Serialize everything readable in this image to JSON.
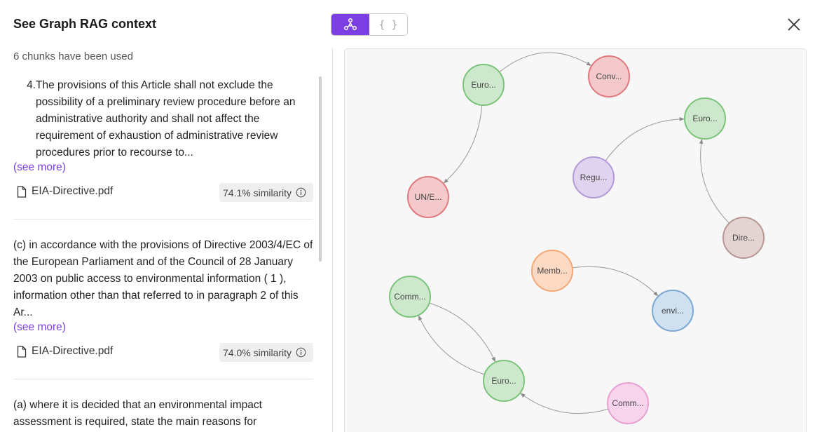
{
  "header": {
    "title": "See Graph RAG context",
    "chunks_count": "6 chunks have been used",
    "toggle_json_label": "{ }"
  },
  "chunks": [
    {
      "list_number": "4.",
      "text": "The provisions of this Article shall not exclude the possibility of a preliminary review procedure before an administrative authority and shall not affect the requirement of exhaustion of administrative review procedures prior to recourse to...",
      "see_more": "(see more)",
      "file": "EIA-Directive.pdf",
      "similarity": "74.1% similarity"
    },
    {
      "text": "(c) in accordance with the provisions of Directive 2003/4/EC of the European Parliament and of the Council of 28 January 2003 on public access to environmental information ( 1 ), information other than that referred to in paragraph 2 of this Ar...",
      "see_more": "(see more)",
      "file": "EIA-Directive.pdf",
      "similarity": "74.0% similarity"
    },
    {
      "text": "(a) where it is decided that an environmental impact assessment is required, state the main reasons for"
    }
  ],
  "graph": {
    "nodes": [
      {
        "id": "n1",
        "label": "Euro...",
        "color": "#cde8cd",
        "stroke": "#7cc47c"
      },
      {
        "id": "n2",
        "label": "Conv...",
        "color": "#f3c9cb",
        "stroke": "#e07a7e"
      },
      {
        "id": "n3",
        "label": "Euro...",
        "color": "#cde8cd",
        "stroke": "#7cc47c"
      },
      {
        "id": "n4",
        "label": "Regu...",
        "color": "#e0d3ef",
        "stroke": "#b49ad8"
      },
      {
        "id": "n5",
        "label": "UN/E...",
        "color": "#f3c9cb",
        "stroke": "#e07a7e"
      },
      {
        "id": "n6",
        "label": "Dire...",
        "color": "#e3d3d1",
        "stroke": "#b79893"
      },
      {
        "id": "n7",
        "label": "Memb...",
        "color": "#fcd9c2",
        "stroke": "#f4a877"
      },
      {
        "id": "n8",
        "label": "envi...",
        "color": "#cfe0ef",
        "stroke": "#7aa9d4"
      },
      {
        "id": "n9",
        "label": "Comm...",
        "color": "#cde8cd",
        "stroke": "#7cc47c"
      },
      {
        "id": "n10",
        "label": "Euro...",
        "color": "#cde8cd",
        "stroke": "#7cc47c"
      },
      {
        "id": "n11",
        "label": "Comm...",
        "color": "#f7d3ec",
        "stroke": "#e6a0d2"
      }
    ],
    "edges": [
      {
        "from": "n1",
        "to": "n2"
      },
      {
        "from": "n1",
        "to": "n5"
      },
      {
        "from": "n4",
        "to": "n3"
      },
      {
        "from": "n6",
        "to": "n3"
      },
      {
        "from": "n7",
        "to": "n8"
      },
      {
        "from": "n9",
        "to": "n10"
      },
      {
        "from": "n10",
        "to": "n9"
      },
      {
        "from": "n11",
        "to": "n10"
      }
    ]
  }
}
